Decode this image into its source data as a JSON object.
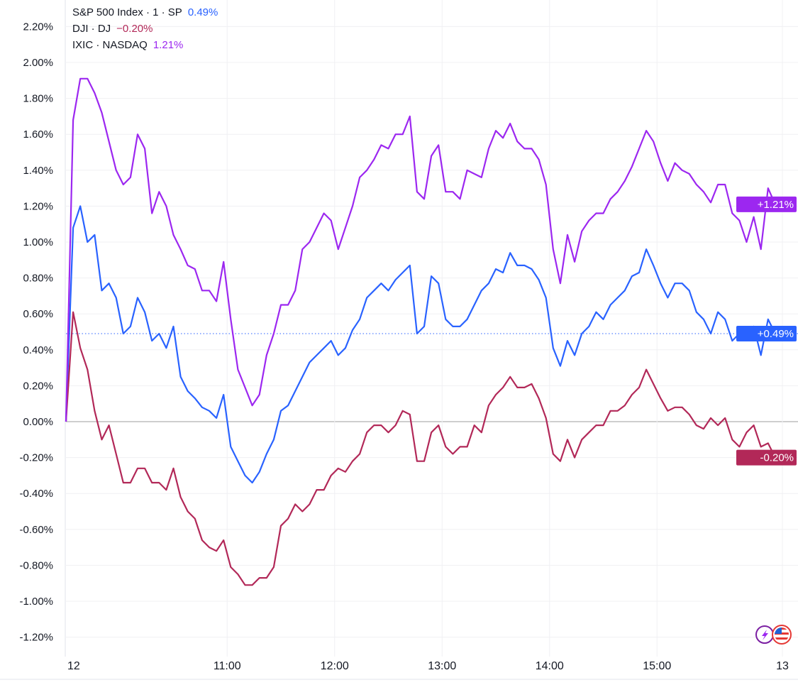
{
  "chart_data": {
    "type": "line",
    "title": "",
    "xlabel": "",
    "ylabel": "",
    "x_start": "09:30",
    "interval_minutes": 4,
    "ylim": [
      -1.2,
      2.2
    ],
    "y_ticks": [
      "2.20%",
      "2.00%",
      "1.80%",
      "1.60%",
      "1.40%",
      "1.20%",
      "1.00%",
      "0.80%",
      "0.60%",
      "0.40%",
      "0.20%",
      "0.00%",
      "-0.20%",
      "-0.40%",
      "-0.60%",
      "-0.80%",
      "-1.00%",
      "-1.20%"
    ],
    "y_tick_values": [
      2.2,
      2.0,
      1.8,
      1.6,
      1.4,
      1.2,
      1.0,
      0.8,
      0.6,
      0.4,
      0.2,
      0.0,
      -0.2,
      -0.4,
      -0.6,
      -0.8,
      -1.0,
      -1.2
    ],
    "x_ticks": [
      {
        "label": "12",
        "minutes": 0
      },
      {
        "label": "11:00",
        "minutes": 90
      },
      {
        "label": "12:00",
        "minutes": 150
      },
      {
        "label": "13:00",
        "minutes": 210
      },
      {
        "label": "14:00",
        "minutes": 270
      },
      {
        "label": "15:00",
        "minutes": 330
      },
      {
        "label": "13",
        "minutes": 400
      }
    ],
    "grid": true,
    "legend_position": "top-left",
    "series": [
      {
        "name": "S&P 500 Index · 1 · SP",
        "last": "0.49%",
        "pill": "+0.49%",
        "last_value": 0.49,
        "color": "#2962ff",
        "values": [
          0,
          1.08,
          1.2,
          1.0,
          1.04,
          0.73,
          0.77,
          0.69,
          0.49,
          0.53,
          0.69,
          0.61,
          0.45,
          0.49,
          0.41,
          0.53,
          0.25,
          0.17,
          0.13,
          0.08,
          0.06,
          0.02,
          0.15,
          -0.14,
          -0.22,
          -0.3,
          -0.34,
          -0.28,
          -0.18,
          -0.1,
          0.06,
          0.09,
          0.17,
          0.25,
          0.33,
          0.37,
          0.41,
          0.45,
          0.37,
          0.41,
          0.51,
          0.57,
          0.69,
          0.73,
          0.77,
          0.73,
          0.79,
          0.83,
          0.87,
          0.49,
          0.53,
          0.81,
          0.77,
          0.57,
          0.53,
          0.53,
          0.57,
          0.65,
          0.73,
          0.77,
          0.85,
          0.83,
          0.94,
          0.87,
          0.87,
          0.85,
          0.79,
          0.69,
          0.41,
          0.31,
          0.45,
          0.37,
          0.49,
          0.53,
          0.61,
          0.57,
          0.65,
          0.69,
          0.73,
          0.81,
          0.83,
          0.96,
          0.87,
          0.77,
          0.69,
          0.77,
          0.77,
          0.73,
          0.61,
          0.57,
          0.49,
          0.61,
          0.57,
          0.45,
          0.49,
          0.49,
          0.53,
          0.37,
          0.57,
          0.49
        ]
      },
      {
        "name": "DJI · DJ",
        "last": "−0.20%",
        "pill": "-0.20%",
        "last_value": -0.2,
        "color": "#b22858",
        "values": [
          0,
          0.61,
          0.41,
          0.29,
          0.06,
          -0.1,
          -0.02,
          -0.18,
          -0.34,
          -0.34,
          -0.26,
          -0.26,
          -0.34,
          -0.34,
          -0.38,
          -0.26,
          -0.42,
          -0.5,
          -0.54,
          -0.66,
          -0.7,
          -0.72,
          -0.66,
          -0.81,
          -0.85,
          -0.91,
          -0.91,
          -0.87,
          -0.87,
          -0.81,
          -0.58,
          -0.54,
          -0.46,
          -0.5,
          -0.46,
          -0.38,
          -0.38,
          -0.3,
          -0.26,
          -0.28,
          -0.22,
          -0.18,
          -0.06,
          -0.02,
          -0.02,
          -0.06,
          -0.02,
          0.06,
          0.04,
          -0.22,
          -0.22,
          -0.06,
          -0.02,
          -0.14,
          -0.18,
          -0.14,
          -0.14,
          -0.02,
          -0.06,
          0.09,
          0.15,
          0.19,
          0.25,
          0.19,
          0.19,
          0.21,
          0.13,
          0.02,
          -0.18,
          -0.22,
          -0.1,
          -0.2,
          -0.1,
          -0.06,
          -0.02,
          -0.02,
          0.06,
          0.06,
          0.09,
          0.15,
          0.19,
          0.29,
          0.21,
          0.13,
          0.06,
          0.08,
          0.08,
          0.04,
          -0.02,
          -0.04,
          0.02,
          -0.02,
          0.02,
          -0.1,
          -0.14,
          -0.06,
          -0.02,
          -0.14,
          -0.12,
          -0.2
        ]
      },
      {
        "name": "IXIC · NASDAQ",
        "last": "1.21%",
        "pill": "+1.21%",
        "last_value": 1.21,
        "color": "#9c27f0",
        "values": [
          0,
          1.68,
          1.91,
          1.91,
          1.83,
          1.72,
          1.56,
          1.4,
          1.32,
          1.36,
          1.6,
          1.52,
          1.16,
          1.28,
          1.2,
          1.04,
          0.96,
          0.87,
          0.85,
          0.73,
          0.73,
          0.67,
          0.89,
          0.57,
          0.29,
          0.19,
          0.09,
          0.15,
          0.37,
          0.49,
          0.65,
          0.65,
          0.73,
          0.96,
          1.0,
          1.08,
          1.16,
          1.12,
          0.96,
          1.08,
          1.2,
          1.36,
          1.4,
          1.46,
          1.54,
          1.52,
          1.6,
          1.6,
          1.7,
          1.28,
          1.24,
          1.48,
          1.54,
          1.28,
          1.28,
          1.24,
          1.4,
          1.38,
          1.36,
          1.52,
          1.62,
          1.58,
          1.66,
          1.56,
          1.52,
          1.52,
          1.46,
          1.32,
          0.96,
          0.77,
          1.04,
          0.89,
          1.06,
          1.12,
          1.16,
          1.16,
          1.24,
          1.28,
          1.34,
          1.42,
          1.52,
          1.62,
          1.56,
          1.44,
          1.34,
          1.44,
          1.4,
          1.38,
          1.32,
          1.28,
          1.22,
          1.32,
          1.32,
          1.16,
          1.12,
          1.0,
          1.14,
          0.96,
          1.3,
          1.21
        ]
      }
    ]
  },
  "badges": {
    "left_icon": "lightning-icon",
    "right_icon": "us-flag-icon"
  }
}
